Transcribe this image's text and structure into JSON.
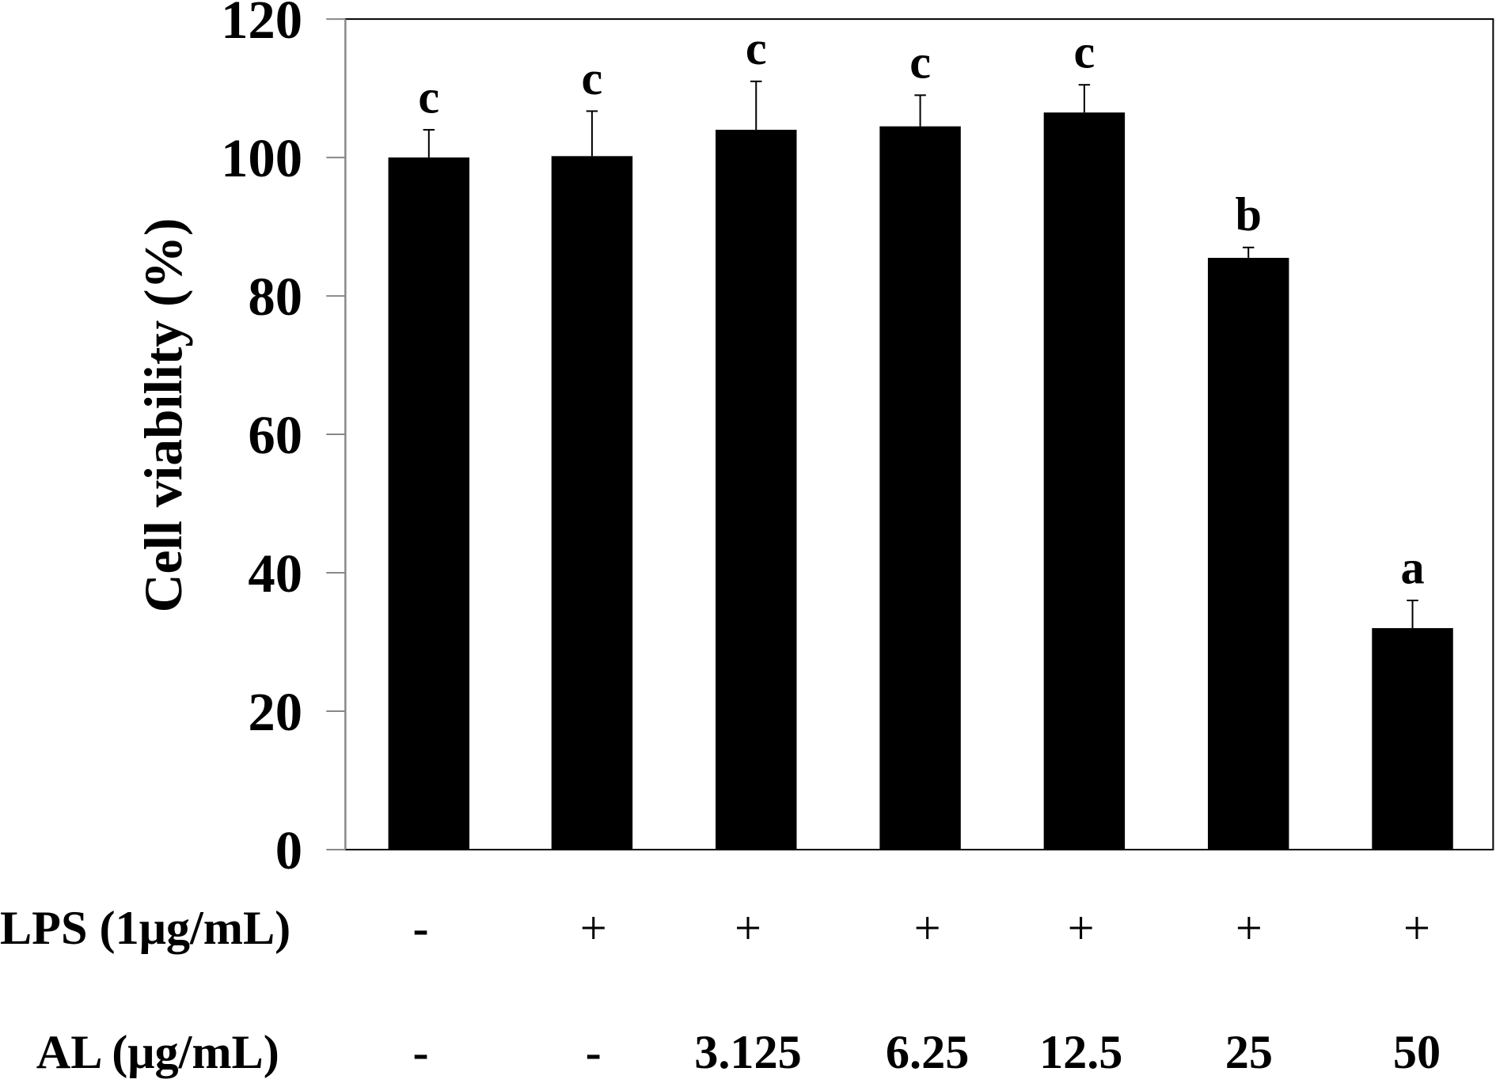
{
  "chart_data": {
    "type": "bar",
    "title": "",
    "xlabel": "",
    "ylabel": "Cell viability (%)",
    "ylim": [
      0,
      120
    ],
    "yticks": [
      0,
      20,
      40,
      60,
      80,
      100,
      120
    ],
    "grid": false,
    "legend": null,
    "categories": [
      "- / -",
      "+ / -",
      "+ / 3.125",
      "+ / 6.25",
      "+ / 12.5",
      "+ / 25",
      "+ / 50"
    ],
    "series": [
      {
        "name": "Cell viability",
        "color": "#000000",
        "values": [
          100,
          100.2,
          104,
          104.5,
          106.5,
          85.5,
          32
        ],
        "errors": [
          4,
          6.5,
          7,
          4.5,
          4,
          1.5,
          4
        ],
        "significance_letters": [
          "c",
          "c",
          "c",
          "c",
          "c",
          "b",
          "a"
        ]
      }
    ],
    "treatment_rows": [
      {
        "label": "LPS (1μg/mL)",
        "values": [
          "-",
          "+",
          "+",
          "+",
          "+",
          "+",
          "+"
        ]
      },
      {
        "label": "AL (μg/mL)",
        "values": [
          "-",
          "-",
          "3.125",
          "6.25",
          "12.5",
          "25",
          "50"
        ]
      }
    ]
  }
}
